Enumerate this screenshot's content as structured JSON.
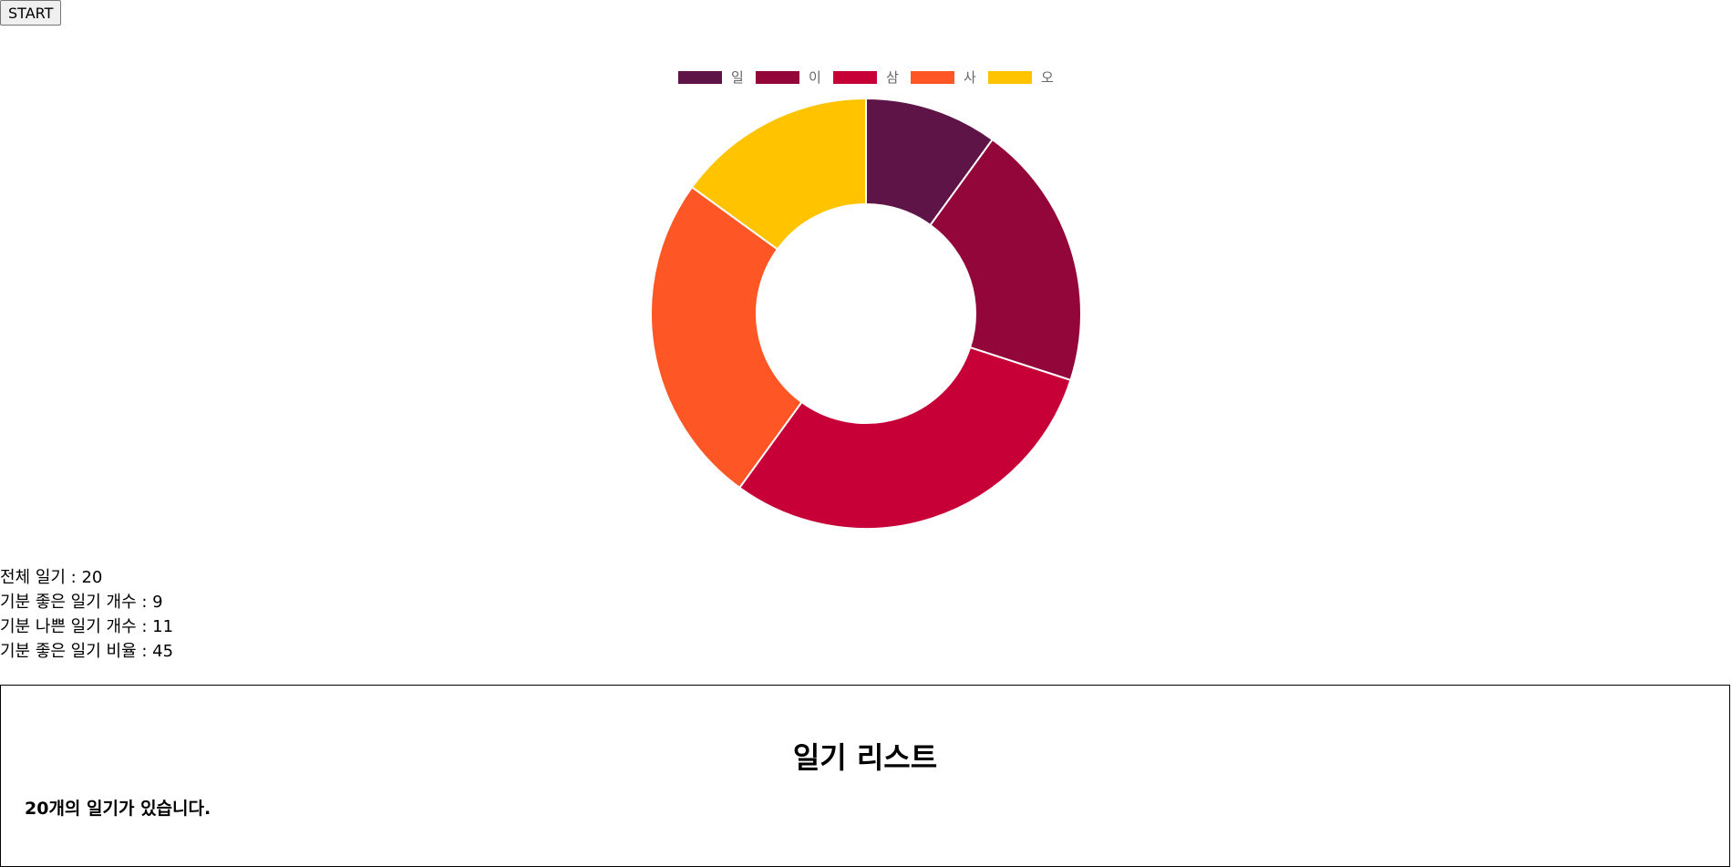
{
  "controls": {
    "start_label": "START"
  },
  "chart_data": {
    "type": "pie",
    "donut": true,
    "categories": [
      "일",
      "이",
      "삼",
      "사",
      "오"
    ],
    "values": [
      2,
      4,
      6,
      5,
      3
    ],
    "colors": [
      "#5e1446",
      "#930639",
      "#c70037",
      "#ff5626",
      "#ffc300"
    ],
    "legend_position": "top"
  },
  "stats": {
    "total": "전체 일기 : 20",
    "good": "기분 좋은 일기 개수 : 9",
    "bad": "기분 나쁜 일기 개수 : 11",
    "ratio": "기분 좋은 일기 비율 : 45"
  },
  "diary": {
    "title": "일기 리스트",
    "count_text": "20개의 일기가 있습니다."
  }
}
